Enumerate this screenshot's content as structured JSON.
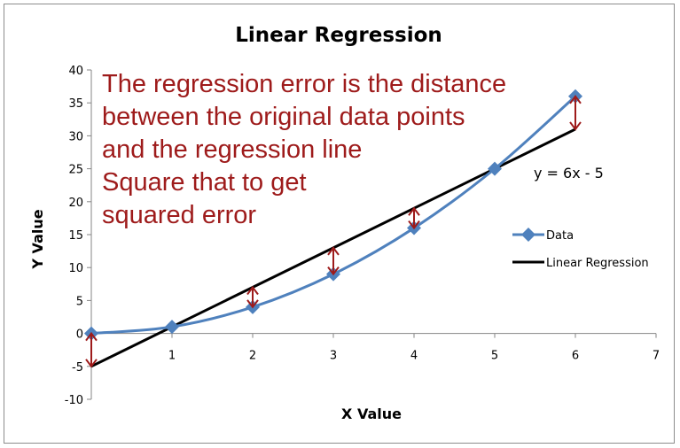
{
  "chart_data": {
    "type": "line",
    "title": "Linear Regression",
    "xlabel": "X Value",
    "ylabel": "Y Value",
    "xlim": [
      0,
      7
    ],
    "ylim": [
      -10,
      40
    ],
    "xticks": [
      "1",
      "2",
      "3",
      "4",
      "5",
      "6",
      "7"
    ],
    "yticks": [
      "-10",
      "-5",
      "0",
      "5",
      "10",
      "15",
      "20",
      "25",
      "30",
      "35",
      "40"
    ],
    "grid": false,
    "legend_position": "right",
    "series": [
      {
        "name": "Data",
        "x": [
          0,
          1,
          2,
          3,
          4,
          5,
          6
        ],
        "y": [
          0,
          1,
          4,
          9,
          16,
          25,
          36
        ],
        "color": "#4f81bd",
        "marker": "diamond",
        "smooth": true
      },
      {
        "name": "Linear Regression",
        "x": [
          0,
          6
        ],
        "y": [
          -5,
          31
        ],
        "color": "#000000"
      }
    ],
    "error_arrows": {
      "x": [
        0,
        2,
        3,
        4,
        6
      ],
      "from": [
        0,
        4,
        9,
        16,
        36
      ],
      "to": [
        -5,
        7,
        13,
        19,
        31
      ],
      "color": "#9e1b1b"
    },
    "annotation_lines": [
      "The regression error is the distance",
      "between the original data points",
      "and the regression line",
      "Square that to get",
      "squared error"
    ],
    "equation": "y = 6x - 5"
  }
}
